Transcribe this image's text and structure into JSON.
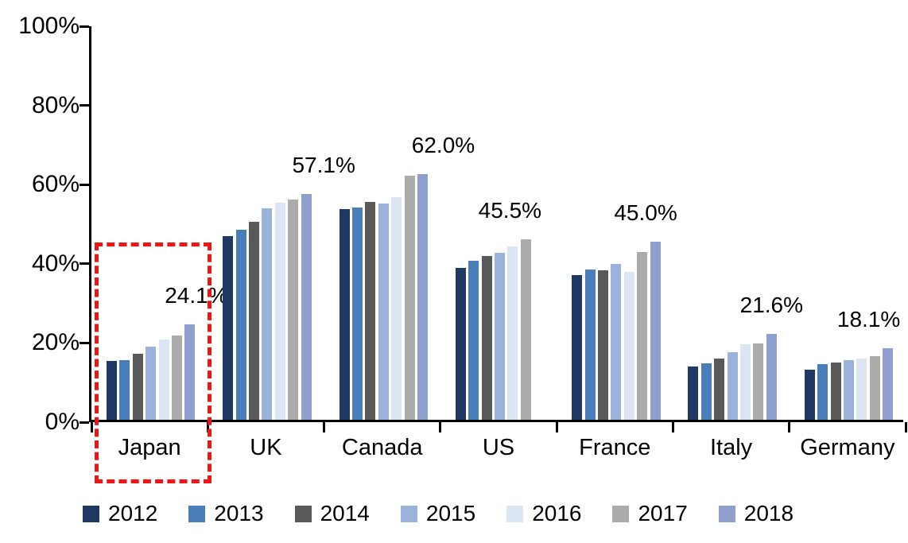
{
  "chart_data": {
    "type": "bar",
    "title": "",
    "xlabel": "",
    "ylabel": "",
    "ylim": [
      0,
      100
    ],
    "grid": false,
    "legend_position": "bottom",
    "y_ticks": [
      "0%",
      "20%",
      "40%",
      "60%",
      "80%",
      "100%"
    ],
    "categories": [
      "Japan",
      "UK",
      "Canada",
      "US",
      "France",
      "Italy",
      "Germany"
    ],
    "series": [
      {
        "name": "2012",
        "color": "#1f3864",
        "values": [
          14.9,
          46.3,
          53.2,
          38.3,
          36.6,
          13.4,
          12.6
        ]
      },
      {
        "name": "2013",
        "color": "#4a7ebb",
        "values": [
          15.0,
          48.0,
          53.6,
          40.2,
          38.0,
          14.2,
          14.0
        ]
      },
      {
        "name": "2014",
        "color": "#595959",
        "values": [
          16.7,
          50.0,
          55.0,
          41.3,
          37.8,
          15.4,
          14.4
        ]
      },
      {
        "name": "2015",
        "color": "#9bb3da",
        "values": [
          18.4,
          53.4,
          54.7,
          42.2,
          39.4,
          17.0,
          15.0
        ]
      },
      {
        "name": "2016",
        "color": "#dce5f2",
        "values": [
          20.3,
          54.8,
          56.2,
          43.7,
          37.4,
          19.0,
          15.4
        ]
      },
      {
        "name": "2017",
        "color": "#ababab",
        "values": [
          21.2,
          55.7,
          61.6,
          45.5,
          42.4,
          19.2,
          16.0
        ]
      },
      {
        "name": "2018",
        "color": "#8fa0ce",
        "values": [
          24.1,
          57.1,
          62.0,
          null,
          45.0,
          21.6,
          18.1
        ]
      }
    ],
    "peak_labels": [
      "24.1%",
      "57.1%",
      "62.0%",
      "45.5%",
      "45.0%",
      "21.6%",
      "18.1%"
    ],
    "highlight": {
      "category": "Japan",
      "style": "red-dashed-box",
      "color": "#f01414"
    }
  }
}
